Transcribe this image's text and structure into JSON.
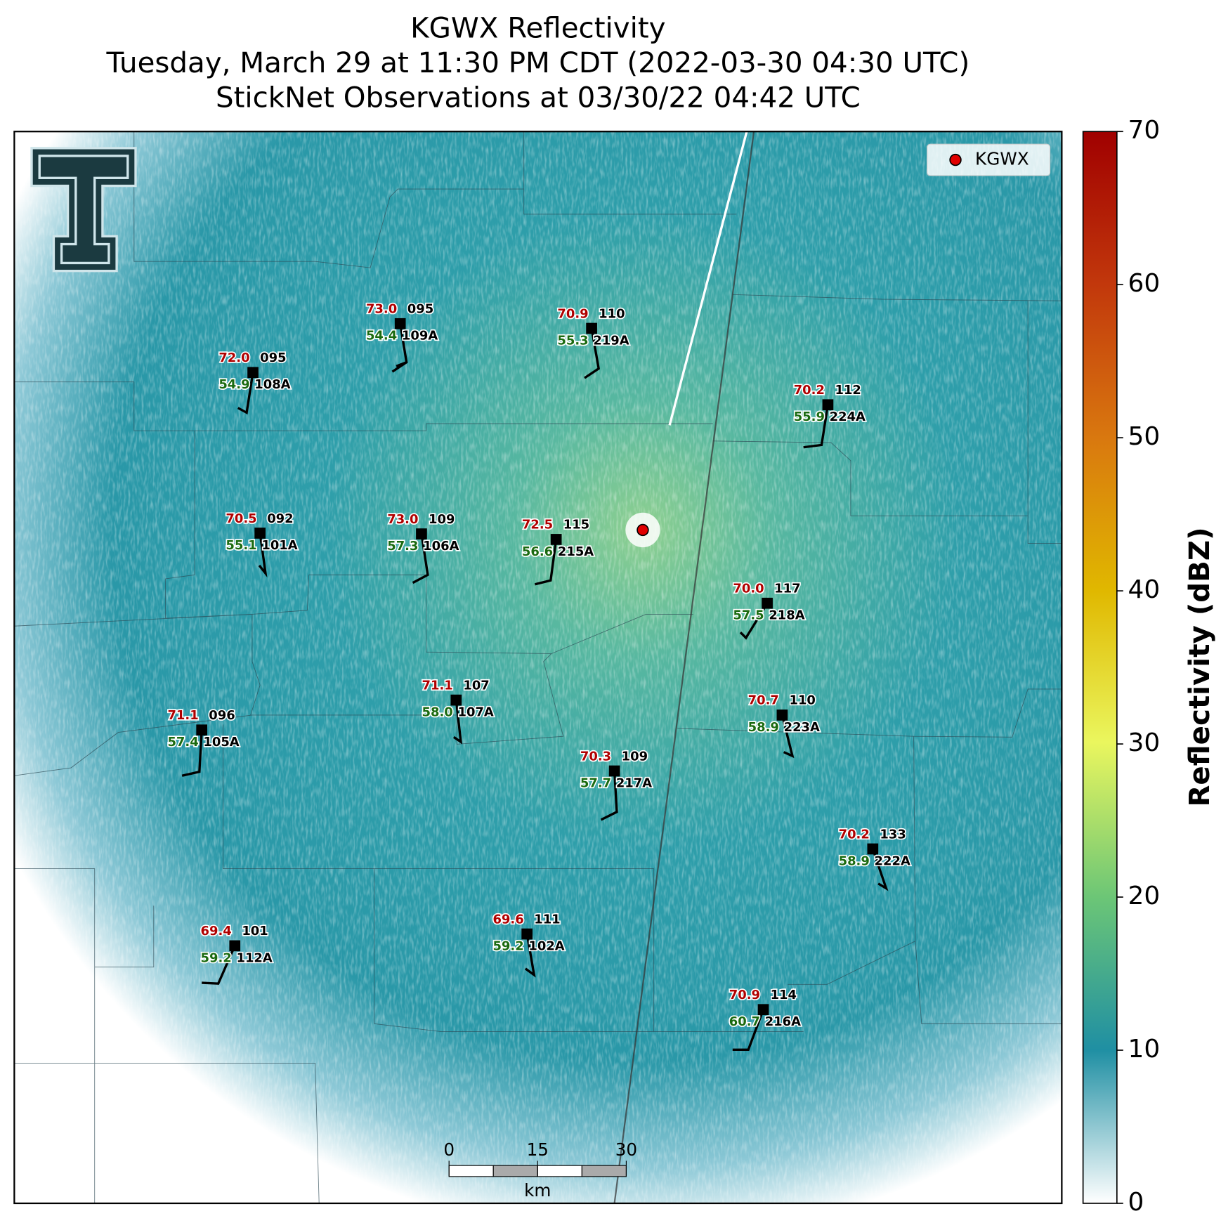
{
  "title": [
    "KGWX Reflectivity",
    "Tuesday, March 29 at 11:30 PM CDT (2022-03-30 04:30 UTC)",
    "StickNet Observations at 03/30/22 04:42 UTC"
  ],
  "legend": "KGWX",
  "stations": [
    {
      "temp": "72.0",
      "dew": "54.9",
      "code": "095",
      "id": "108A"
    },
    {
      "temp": "73.0",
      "dew": "54.4",
      "code": "095",
      "id": "109A"
    },
    {
      "temp": "70.9",
      "dew": "55.3",
      "code": "110",
      "id": "219A"
    },
    {
      "temp": "70.2",
      "dew": "55.9",
      "code": "112",
      "id": "224A"
    },
    {
      "temp": "70.5",
      "dew": "55.1",
      "code": "092",
      "id": "101A"
    },
    {
      "temp": "73.0",
      "dew": "57.3",
      "code": "109",
      "id": "106A"
    },
    {
      "temp": "72.5",
      "dew": "56.6",
      "code": "115",
      "id": "215A"
    },
    {
      "temp": "70.0",
      "dew": "57.5",
      "code": "117",
      "id": "218A"
    },
    {
      "temp": "71.1",
      "dew": "58.0",
      "code": "107",
      "id": "107A"
    },
    {
      "temp": "71.1",
      "dew": "57.4",
      "code": "096",
      "id": "105A"
    },
    {
      "temp": "70.7",
      "dew": "58.9",
      "code": "110",
      "id": "223A"
    },
    {
      "temp": "70.3",
      "dew": "57.7",
      "code": "109",
      "id": "217A"
    },
    {
      "temp": "70.2",
      "dew": "58.9",
      "code": "133",
      "id": "222A"
    },
    {
      "temp": "69.6",
      "dew": "59.2",
      "code": "111",
      "id": "102A"
    },
    {
      "temp": "69.4",
      "dew": "59.2",
      "code": "101",
      "id": "112A"
    },
    {
      "temp": "70.9",
      "dew": "60.7",
      "code": "114",
      "id": "216A"
    }
  ],
  "colorbar": {
    "label": "Reflectivity (dBZ)",
    "lim": [
      0,
      70
    ],
    "ticks": [
      0,
      10,
      20,
      30,
      40,
      50,
      60,
      70
    ]
  },
  "scalebar": {
    "lim": [
      0,
      30
    ],
    "ticks": [
      0,
      15,
      30
    ],
    "unit": "km"
  }
}
